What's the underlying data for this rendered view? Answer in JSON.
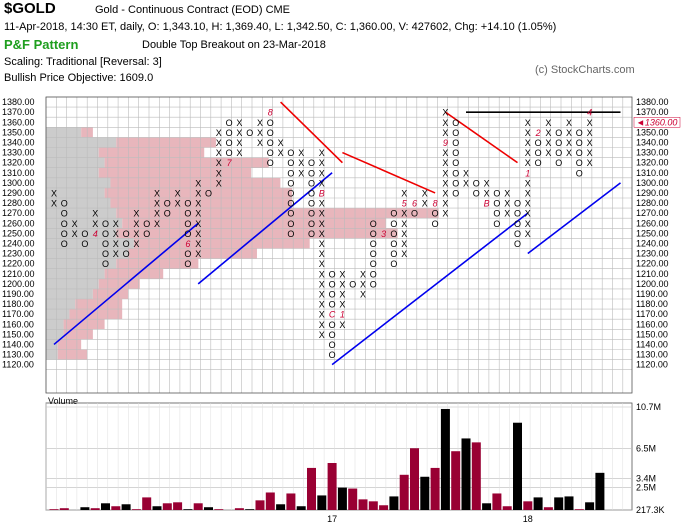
{
  "header": {
    "symbol": "$GOLD",
    "description": "Gold - Continuous Contract (EOD)  CME",
    "ohlc_line": "11-Apr-2018, 14:30 ET, daily, O: 1,343.10, H: 1,369.40, L: 1,342.50, C: 1,360.00, V: 427602, Chg: +14.10 (1.05%)",
    "pattern_title": "P&F Pattern",
    "pattern_desc": "Double Top Breakout on 23-Mar-2018",
    "scaling": "Scaling: Traditional [Reversal: 3]",
    "objective": "Bullish Price Objective: 1609.0",
    "copyright": "(c) StockCharts.com"
  },
  "colors": {
    "x_mark": "#000000",
    "o_mark": "#000000",
    "month_mark": "#cc0033",
    "support_line": "#0000ee",
    "resistance_line": "#ee0000",
    "current_price_tag": "#cc0033",
    "volume_up": "#000000",
    "volume_down": "#990033",
    "volume_by_price_up": "#cccccc",
    "volume_by_price_down": "#e8b6bc"
  },
  "chart_data": [
    {
      "type": "point-and-figure",
      "box_size": 10,
      "reversal": 3,
      "y_range": [
        1120,
        1380
      ],
      "y_ticks": [
        "1380.00",
        "1370.00",
        "1360.00",
        "1350.00",
        "1340.00",
        "1330.00",
        "1320.00",
        "1310.00",
        "1300.00",
        "1290.00",
        "1280.00",
        "1270.00",
        "1260.00",
        "1250.00",
        "1240.00",
        "1230.00",
        "1220.00",
        "1210.00",
        "1200.00",
        "1190.00",
        "1180.00",
        "1170.00",
        "1160.00",
        "1150.00",
        "1140.00",
        "1130.00",
        "1120.00"
      ],
      "current_price_label": "1360.00",
      "current_price": 1360,
      "columns": [
        {
          "t": "X",
          "from": 1280,
          "to": 1290
        },
        {
          "t": "O",
          "from": 1240,
          "to": 1280
        },
        {
          "t": "X",
          "from": 1250,
          "to": 1260
        },
        {
          "t": "O",
          "from": 1240,
          "to": 1250
        },
        {
          "t": "X",
          "from": 1250,
          "to": 1270
        },
        {
          "t": "O",
          "from": 1220,
          "to": 1260
        },
        {
          "t": "X",
          "from": 1230,
          "to": 1260
        },
        {
          "t": "O",
          "from": 1230,
          "to": 1250
        },
        {
          "t": "X",
          "from": 1240,
          "to": 1270
        },
        {
          "t": "O",
          "from": 1250,
          "to": 1260
        },
        {
          "t": "X",
          "from": 1260,
          "to": 1290
        },
        {
          "t": "O",
          "from": 1270,
          "to": 1280
        },
        {
          "t": "X",
          "from": 1280,
          "to": 1290
        },
        {
          "t": "O",
          "from": 1220,
          "to": 1280
        },
        {
          "t": "X",
          "from": 1230,
          "to": 1300
        },
        {
          "t": "O",
          "from": 1290,
          "to": 1290
        },
        {
          "t": "X",
          "from": 1300,
          "to": 1350
        },
        {
          "t": "O",
          "from": 1320,
          "to": 1360
        },
        {
          "t": "X",
          "from": 1330,
          "to": 1360
        },
        {
          "t": "O",
          "from": 1350,
          "to": 1350
        },
        {
          "t": "X",
          "from": 1340,
          "to": 1360
        },
        {
          "t": "O",
          "from": 1320,
          "to": 1370
        },
        {
          "t": "X",
          "from": 1330,
          "to": 1340
        },
        {
          "t": "O",
          "from": 1250,
          "to": 1330
        },
        {
          "t": "X",
          "from": 1310,
          "to": 1330
        },
        {
          "t": "O",
          "from": 1250,
          "to": 1320
        },
        {
          "t": "X",
          "from": 1150,
          "to": 1330
        },
        {
          "t": "O",
          "from": 1130,
          "to": 1210
        },
        {
          "t": "X",
          "from": 1160,
          "to": 1210
        },
        {
          "t": "O",
          "from": 1200,
          "to": 1200
        },
        {
          "t": "X",
          "from": 1190,
          "to": 1210
        },
        {
          "t": "O",
          "from": 1200,
          "to": 1260
        },
        {
          "t": "X",
          "from": 1250,
          "to": 1250
        },
        {
          "t": "O",
          "from": 1220,
          "to": 1270
        },
        {
          "t": "X",
          "from": 1230,
          "to": 1290
        },
        {
          "t": "O",
          "from": 1270,
          "to": 1280
        },
        {
          "t": "X",
          "from": 1280,
          "to": 1290
        },
        {
          "t": "O",
          "from": 1260,
          "to": 1280
        },
        {
          "t": "X",
          "from": 1270,
          "to": 1370
        },
        {
          "t": "O",
          "from": 1290,
          "to": 1360
        },
        {
          "t": "X",
          "from": 1300,
          "to": 1310
        },
        {
          "t": "O",
          "from": 1290,
          "to": 1300
        },
        {
          "t": "X",
          "from": 1280,
          "to": 1300
        },
        {
          "t": "O",
          "from": 1260,
          "to": 1290
        },
        {
          "t": "X",
          "from": 1270,
          "to": 1290
        },
        {
          "t": "O",
          "from": 1240,
          "to": 1280
        },
        {
          "t": "X",
          "from": 1250,
          "to": 1360
        },
        {
          "t": "O",
          "from": 1320,
          "to": 1350
        },
        {
          "t": "X",
          "from": 1330,
          "to": 1360
        },
        {
          "t": "O",
          "from": 1320,
          "to": 1350
        },
        {
          "t": "X",
          "from": 1330,
          "to": 1360
        },
        {
          "t": "O",
          "from": 1310,
          "to": 1350
        },
        {
          "t": "X",
          "from": 1320,
          "to": 1370
        }
      ],
      "month_markers": [
        {
          "col": 4,
          "price": 1250,
          "label": "4"
        },
        {
          "col": 9,
          "price": 1300,
          "label": "5"
        },
        {
          "col": 13,
          "price": 1240,
          "label": "6"
        },
        {
          "col": 17,
          "price": 1320,
          "label": "7"
        },
        {
          "col": 21,
          "price": 1370,
          "label": "8"
        },
        {
          "col": 22,
          "price": 1320,
          "label": "9"
        },
        {
          "col": 25,
          "price": 1330,
          "label": "A"
        },
        {
          "col": 26,
          "price": 1290,
          "label": "B"
        },
        {
          "col": 27,
          "price": 1170,
          "label": "C"
        },
        {
          "col": 28,
          "price": 1170,
          "label": "1"
        },
        {
          "col": 32,
          "price": 1250,
          "label": "3"
        },
        {
          "col": 33,
          "price": 1280,
          "label": "4"
        },
        {
          "col": 34,
          "price": 1280,
          "label": "5"
        },
        {
          "col": 35,
          "price": 1280,
          "label": "6"
        },
        {
          "col": 36,
          "price": 1240,
          "label": "7"
        },
        {
          "col": 37,
          "price": 1280,
          "label": "8"
        },
        {
          "col": 38,
          "price": 1340,
          "label": "9"
        },
        {
          "col": 39,
          "price": 1270,
          "label": "A"
        },
        {
          "col": 42,
          "price": 1280,
          "label": "B"
        },
        {
          "col": 45,
          "price": 1290,
          "label": "C"
        },
        {
          "col": 46,
          "price": 1310,
          "label": "1"
        },
        {
          "col": 47,
          "price": 1350,
          "label": "2"
        },
        {
          "col": 48,
          "price": 1310,
          "label": "3"
        },
        {
          "col": 52,
          "price": 1370,
          "label": "4"
        }
      ],
      "trend_lines": [
        {
          "kind": "support",
          "from": [
            0,
            1140
          ],
          "to": [
            14,
            1260
          ]
        },
        {
          "kind": "support",
          "from": [
            14,
            1200
          ],
          "to": [
            27,
            1310
          ]
        },
        {
          "kind": "support",
          "from": [
            27,
            1120
          ],
          "to": [
            46,
            1270
          ]
        },
        {
          "kind": "support",
          "from": [
            46,
            1230
          ],
          "to": [
            55,
            1300
          ]
        },
        {
          "kind": "resistance",
          "from": [
            22,
            1380
          ],
          "to": [
            28,
            1320
          ]
        },
        {
          "kind": "resistance",
          "from": [
            28,
            1330
          ],
          "to": [
            37,
            1290
          ]
        },
        {
          "kind": "resistance",
          "from": [
            38,
            1370
          ],
          "to": [
            45,
            1320
          ]
        },
        {
          "kind": "resistance",
          "from": [
            40,
            1370
          ],
          "to": [
            55,
            1370
          ],
          "color": "#000000"
        }
      ],
      "volume_by_price": [
        {
          "price": 1350,
          "up": 0.06,
          "down": 0.02
        },
        {
          "price": 1340,
          "up": 0.12,
          "down": 0.17
        },
        {
          "price": 1330,
          "up": 0.09,
          "down": 0.18
        },
        {
          "price": 1320,
          "up": 0.1,
          "down": 0.28
        },
        {
          "price": 1310,
          "up": 0.09,
          "down": 0.26
        },
        {
          "price": 1300,
          "up": 0.11,
          "down": 0.29
        },
        {
          "price": 1290,
          "up": 0.1,
          "down": 0.32
        },
        {
          "price": 1280,
          "up": 0.11,
          "down": 0.31
        },
        {
          "price": 1270,
          "up": 0.12,
          "down": 0.55
        },
        {
          "price": 1260,
          "up": 0.13,
          "down": 0.45
        },
        {
          "price": 1250,
          "up": 0.12,
          "down": 0.48
        },
        {
          "price": 1240,
          "up": 0.15,
          "down": 0.3
        },
        {
          "price": 1230,
          "up": 0.14,
          "down": 0.22
        },
        {
          "price": 1220,
          "up": 0.12,
          "down": 0.14
        },
        {
          "price": 1210,
          "up": 0.1,
          "down": 0.1
        },
        {
          "price": 1200,
          "up": 0.09,
          "down": 0.07
        },
        {
          "price": 1190,
          "up": 0.08,
          "down": 0.06
        },
        {
          "price": 1180,
          "up": 0.05,
          "down": 0.08
        },
        {
          "price": 1170,
          "up": 0.04,
          "down": 0.09
        },
        {
          "price": 1160,
          "up": 0.03,
          "down": 0.07
        },
        {
          "price": 1150,
          "up": 0.03,
          "down": 0.05
        },
        {
          "price": 1140,
          "up": 0.02,
          "down": 0.04
        },
        {
          "price": 1130,
          "up": 0.02,
          "down": 0.05
        }
      ]
    },
    {
      "type": "bar",
      "title": "Volume",
      "y_ticks": [
        "10.7M",
        "6.5M",
        "3.4M",
        "2.5M",
        "217.3K"
      ],
      "y_tick_values": [
        10.7,
        6.5,
        3.4,
        2.5,
        0.2173
      ],
      "y_range": [
        0.2173,
        10.7
      ],
      "x_labels": [
        {
          "col": 27,
          "label": "17"
        },
        {
          "col": 46,
          "label": "18"
        }
      ],
      "values_millions": [
        0.3,
        0.4,
        0.2,
        0.5,
        0.4,
        0.9,
        0.6,
        0.8,
        0.3,
        1.5,
        0.6,
        0.9,
        1.0,
        0.3,
        0.9,
        0.5,
        0.3,
        0.2,
        0.4,
        0.3,
        1.2,
        2.0,
        0.8,
        1.9,
        0.6,
        4.5,
        1.7,
        5.0,
        2.5,
        2.4,
        1.3,
        1.1,
        0.7,
        1.6,
        3.8,
        6.5,
        3.6,
        4.5,
        10.5,
        6.2,
        7.5,
        7.1,
        0.9,
        1.9,
        0.6,
        9.1,
        1.1,
        1.5,
        0.5,
        1.5,
        1.6,
        0.3,
        1.0,
        4.0
      ],
      "directions": [
        "d",
        "d",
        "d",
        "u",
        "d",
        "u",
        "d",
        "u",
        "d",
        "d",
        "u",
        "d",
        "d",
        "u",
        "d",
        "u",
        "d",
        "u",
        "d",
        "u",
        "d",
        "d",
        "u",
        "d",
        "u",
        "d",
        "u",
        "d",
        "u",
        "d",
        "d",
        "d",
        "d",
        "u",
        "d",
        "d",
        "u",
        "d",
        "u",
        "d",
        "u",
        "d",
        "u",
        "d",
        "d",
        "u",
        "d",
        "u",
        "d",
        "u",
        "u",
        "d",
        "u",
        "u"
      ]
    }
  ]
}
